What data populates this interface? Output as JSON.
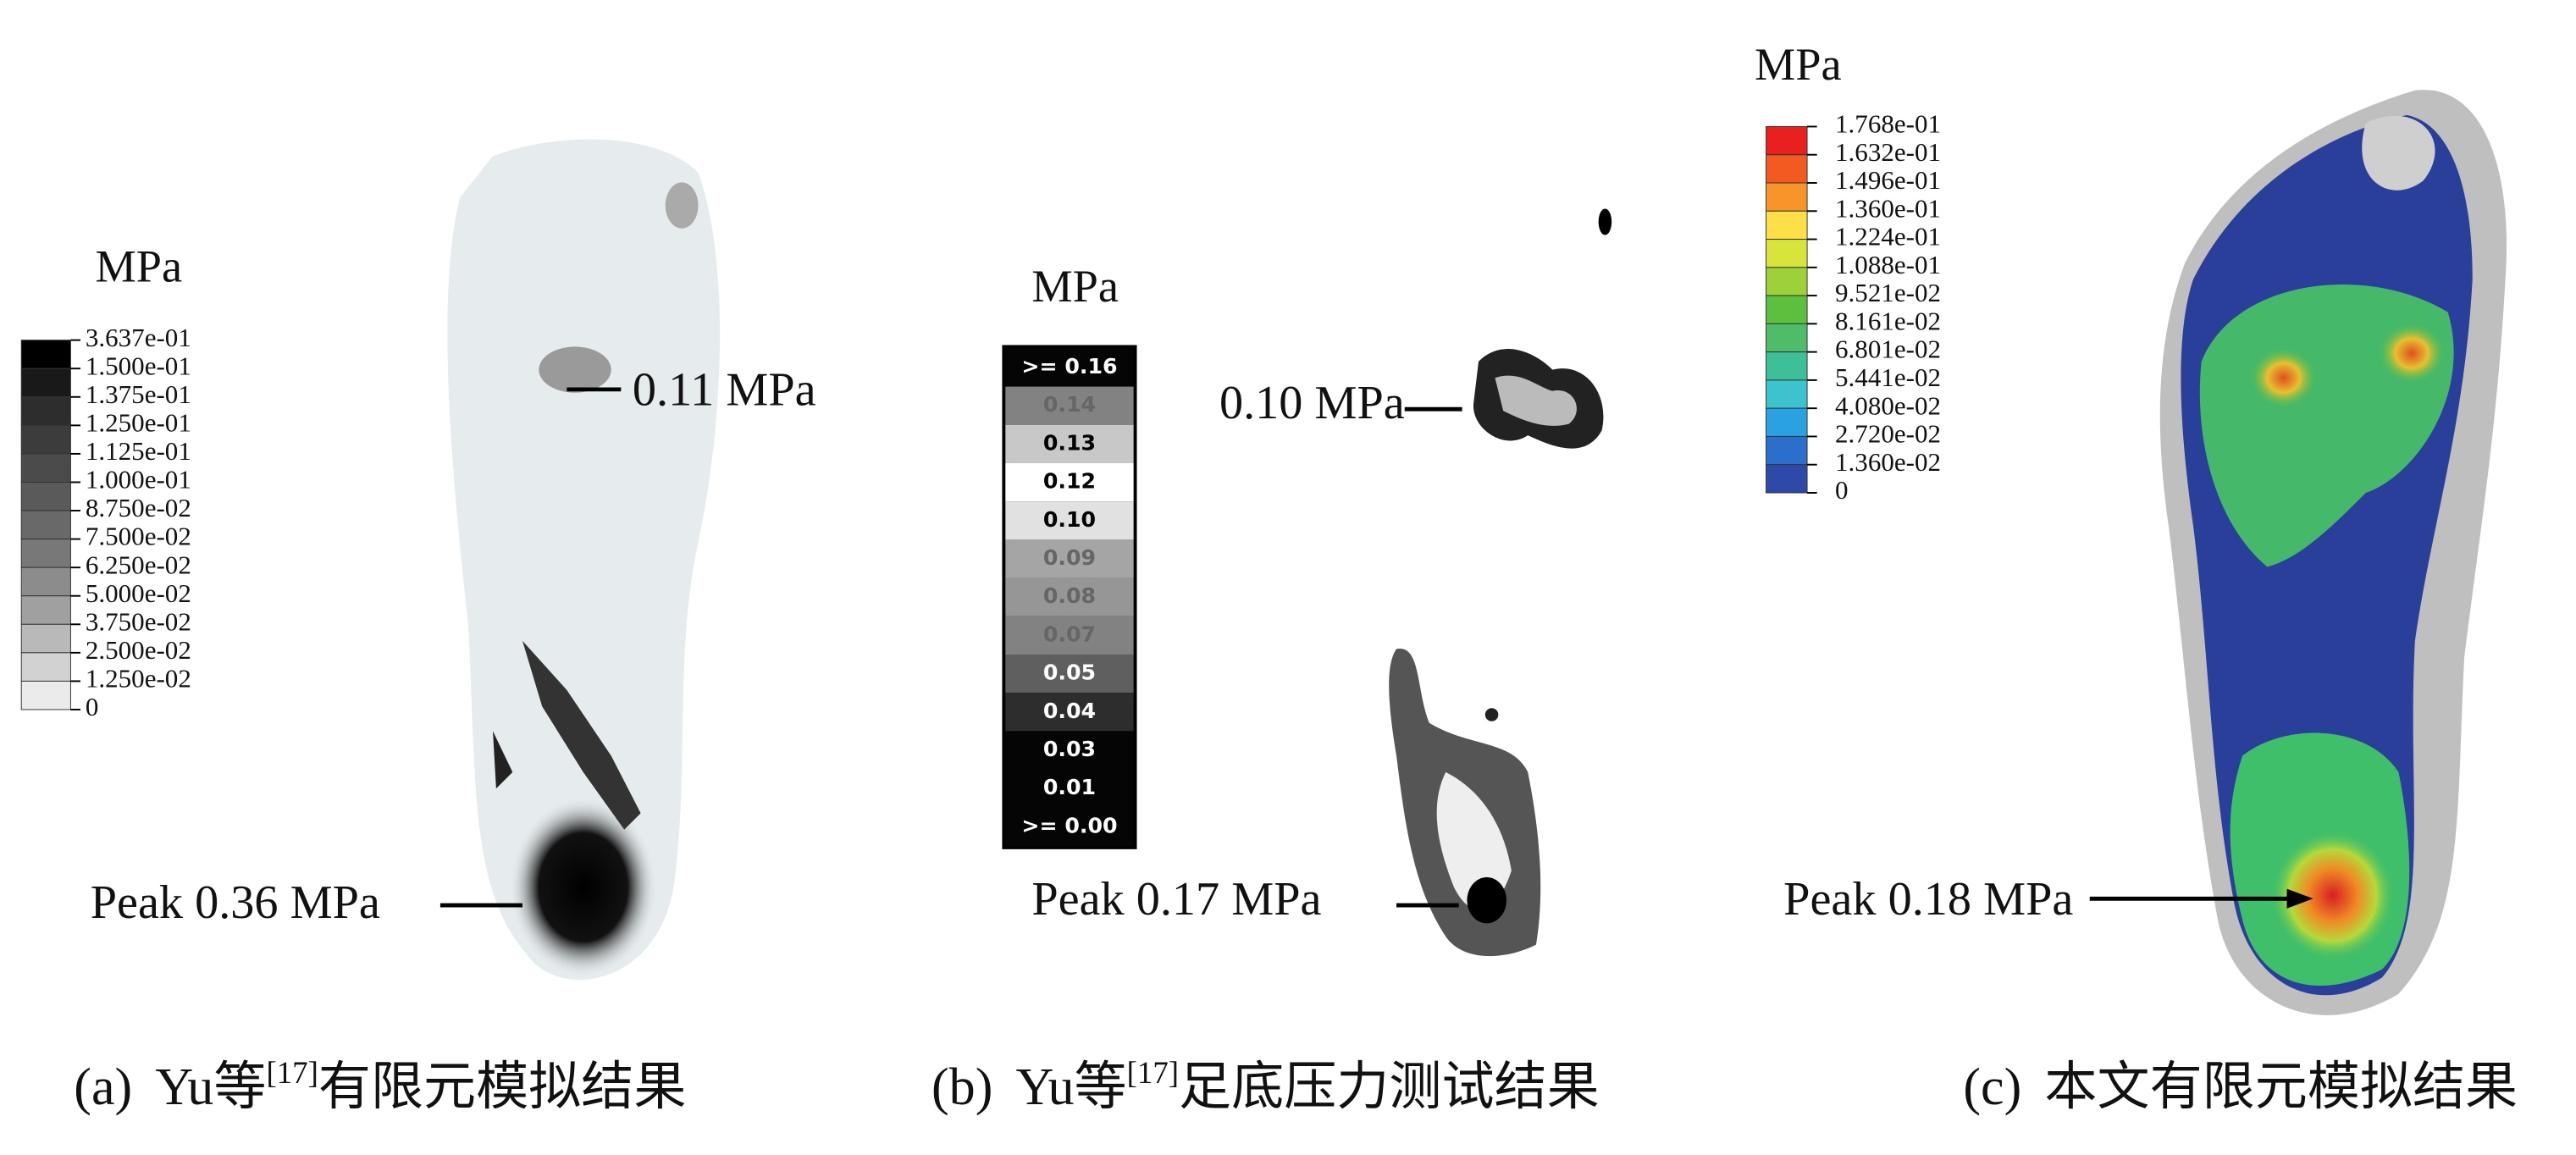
{
  "panels": [
    {
      "label": "(a)",
      "unit": "MPa",
      "legend": [
        "3.637e-01",
        "1.500e-01",
        "1.375e-01",
        "1.250e-01",
        "1.125e-01",
        "1.000e-01",
        "8.750e-02",
        "7.500e-02",
        "6.250e-02",
        "5.000e-02",
        "3.750e-02",
        "2.500e-02",
        "1.250e-02",
        "0"
      ],
      "annotations": [
        "0.11 MPa",
        "Peak 0.36 MPa"
      ],
      "caption": {
        "author": "Yu等",
        "ref": "[17]",
        "text": "有限元模拟结果"
      }
    },
    {
      "label": "(b)",
      "unit": "MPa",
      "legend": [
        ">= 0.16",
        "0.14",
        "0.13",
        "0.12",
        "0.10",
        "0.09",
        "0.08",
        "0.07",
        "0.05",
        "0.04",
        "0.03",
        "0.01",
        ">= 0.00"
      ],
      "annotations": [
        "0.10 MPa",
        "Peak 0.17 MPa"
      ],
      "caption": {
        "author": "Yu等",
        "ref": "[17]",
        "text": "足底压力测试结果"
      }
    },
    {
      "label": "(c)",
      "unit": "MPa",
      "legend": [
        "1.768e-01",
        "1.632e-01",
        "1.496e-01",
        "1.360e-01",
        "1.224e-01",
        "1.088e-01",
        "9.521e-02",
        "8.161e-02",
        "6.801e-02",
        "5.441e-02",
        "4.080e-02",
        "2.720e-02",
        "1.360e-02",
        "0"
      ],
      "annotations": [
        "Peak 0.18 MPa"
      ],
      "caption": {
        "text": "本文有限元模拟结果"
      }
    }
  ]
}
